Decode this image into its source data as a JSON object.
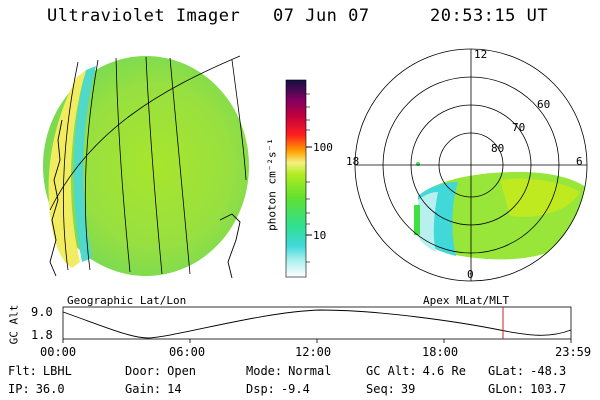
{
  "header": {
    "title": "Ultraviolet Imager",
    "date": "07 Jun 07",
    "time": "20:53:15 UT"
  },
  "colorbar": {
    "label": "photon cm⁻²s⁻¹",
    "ticks": [
      "100",
      "10"
    ]
  },
  "left_panel": {
    "caption": "Geographic Lat/Lon"
  },
  "right_panel": {
    "caption": "Apex MLat/MLT",
    "mlt_labels": {
      "top": "12",
      "left": "18",
      "right": "6",
      "bottom": "0"
    },
    "lat_labels": [
      "60",
      "70",
      "80"
    ]
  },
  "orbit": {
    "ylabel": "GC Alt",
    "yticks": [
      "9.0",
      "1.8"
    ],
    "xticks": [
      "00:00",
      "06:00",
      "12:00",
      "18:00",
      "23:59"
    ]
  },
  "footer": [
    [
      {
        "k": "Flt:",
        "v": "LBHL"
      },
      {
        "k": "Door:",
        "v": "Open"
      },
      {
        "k": "Mode:",
        "v": "Normal"
      },
      {
        "k": "GC Alt:",
        "v": "4.6 Re"
      },
      {
        "k": "GLat:",
        "v": "-48.3"
      }
    ],
    [
      {
        "k": "IP:",
        "v": "36.0"
      },
      {
        "k": "Gain:",
        "v": "14"
      },
      {
        "k": "Dsp:",
        "v": "-9.4"
      },
      {
        "k": "Seq:",
        "v": "39"
      },
      {
        "k": "GLon:",
        "v": "103.7"
      }
    ]
  ]
}
